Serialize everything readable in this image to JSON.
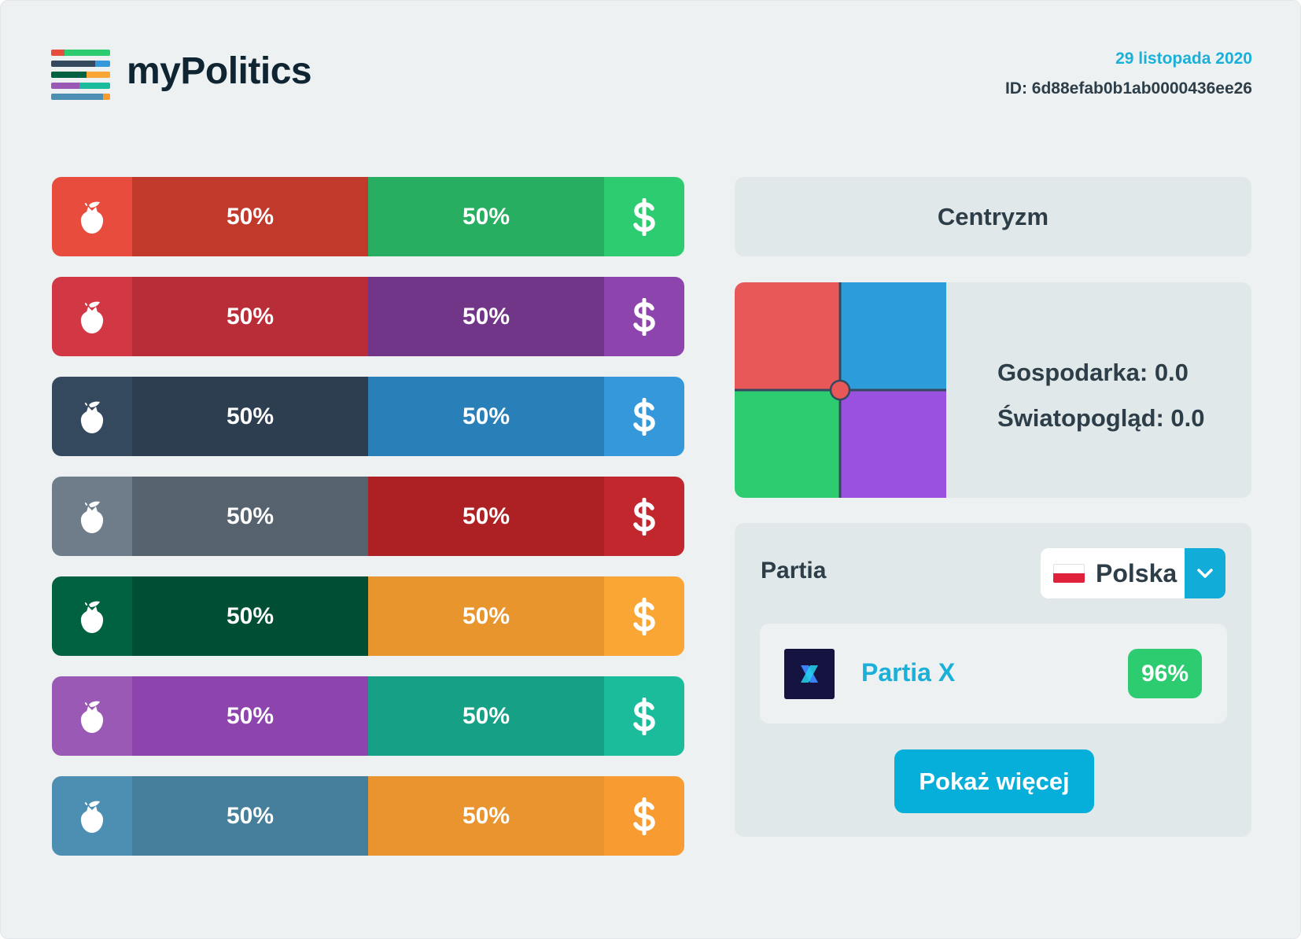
{
  "header": {
    "brand": "myPolitics",
    "date": "29 listopada 2020",
    "id": "ID: 6d88efab0b1ab0000436ee26"
  },
  "bars": [
    {
      "left_label": "50%",
      "right_label": "50%",
      "left_value": 50,
      "right_value": 50,
      "left_icon": "rose-icon",
      "right_icon": "dollar-icon",
      "colors": {
        "left_icon_bg": "#e74c3c",
        "left_bar": "#c0392b",
        "right_bar": "#27ae60",
        "right_icon_bg": "#2ecc71"
      }
    },
    {
      "left_label": "50%",
      "right_label": "50%",
      "left_value": 50,
      "right_value": 50,
      "left_icon": "rose-icon",
      "right_icon": "dollar-icon",
      "colors": {
        "left_icon_bg": "#d13843",
        "left_bar": "#b92d38",
        "right_bar": "#713688",
        "right_icon_bg": "#8e44ad"
      }
    },
    {
      "left_label": "50%",
      "right_label": "50%",
      "left_value": 50,
      "right_value": 50,
      "left_icon": "rose-icon",
      "right_icon": "dollar-icon",
      "colors": {
        "left_icon_bg": "#34495e",
        "left_bar": "#2c3e50",
        "right_bar": "#2980b9",
        "right_icon_bg": "#3498db"
      }
    },
    {
      "left_label": "50%",
      "right_label": "50%",
      "left_value": 50,
      "right_value": 50,
      "left_icon": "rose-icon",
      "right_icon": "dollar-icon",
      "colors": {
        "left_icon_bg": "#6f7c8a",
        "left_bar": "#56626d",
        "right_bar": "#ad2124",
        "right_icon_bg": "#c1272d"
      }
    },
    {
      "left_label": "50%",
      "right_label": "50%",
      "left_value": 50,
      "right_value": 50,
      "left_icon": "rose-icon",
      "right_icon": "dollar-icon",
      "colors": {
        "left_icon_bg": "#006241",
        "left_bar": "#004f35",
        "right_bar": "#e8952e",
        "right_icon_bg": "#faa634"
      }
    },
    {
      "left_label": "50%",
      "right_label": "50%",
      "left_value": 50,
      "right_value": 50,
      "left_icon": "rose-icon",
      "right_icon": "dollar-icon",
      "colors": {
        "left_icon_bg": "#9b59b6",
        "left_bar": "#8e44ad",
        "right_bar": "#16a085",
        "right_icon_bg": "#1abc9c"
      }
    },
    {
      "left_label": "50%",
      "right_label": "50%",
      "left_value": 50,
      "right_value": 50,
      "left_icon": "rose-icon",
      "right_icon": "dollar-icon",
      "colors": {
        "left_icon_bg": "#4d8fb2",
        "left_bar": "#457f9b",
        "right_bar": "#ea9430",
        "right_icon_bg": "#f89c32"
      }
    }
  ],
  "ideology": "Centryzm",
  "compass": {
    "economy_label": "Gospodarka: 0.0",
    "worldview_label": "Światopogląd: 0.0",
    "economy": 0.0,
    "worldview": 0.0,
    "colors": {
      "top_left": "#e95858",
      "top_right": "#2d9cdb",
      "bottom_left": "#2ecc71",
      "bottom_right": "#9b51e0",
      "marker": "#e95858"
    }
  },
  "party_section": {
    "label": "Partia",
    "country": "Polska",
    "country_flag": "poland-flag-icon",
    "dropdown_icon": "chevron-down-icon",
    "party": {
      "name": "Partia X",
      "match": "96%",
      "logo": "partia-x-logo"
    },
    "more_button": "Pokaż więcej"
  },
  "colors": {
    "accent": "#05afd9",
    "background": "#eef1f2",
    "panel": "#e1e8ea",
    "text_dark": "#2d3e48",
    "success": "#2ecc71"
  }
}
